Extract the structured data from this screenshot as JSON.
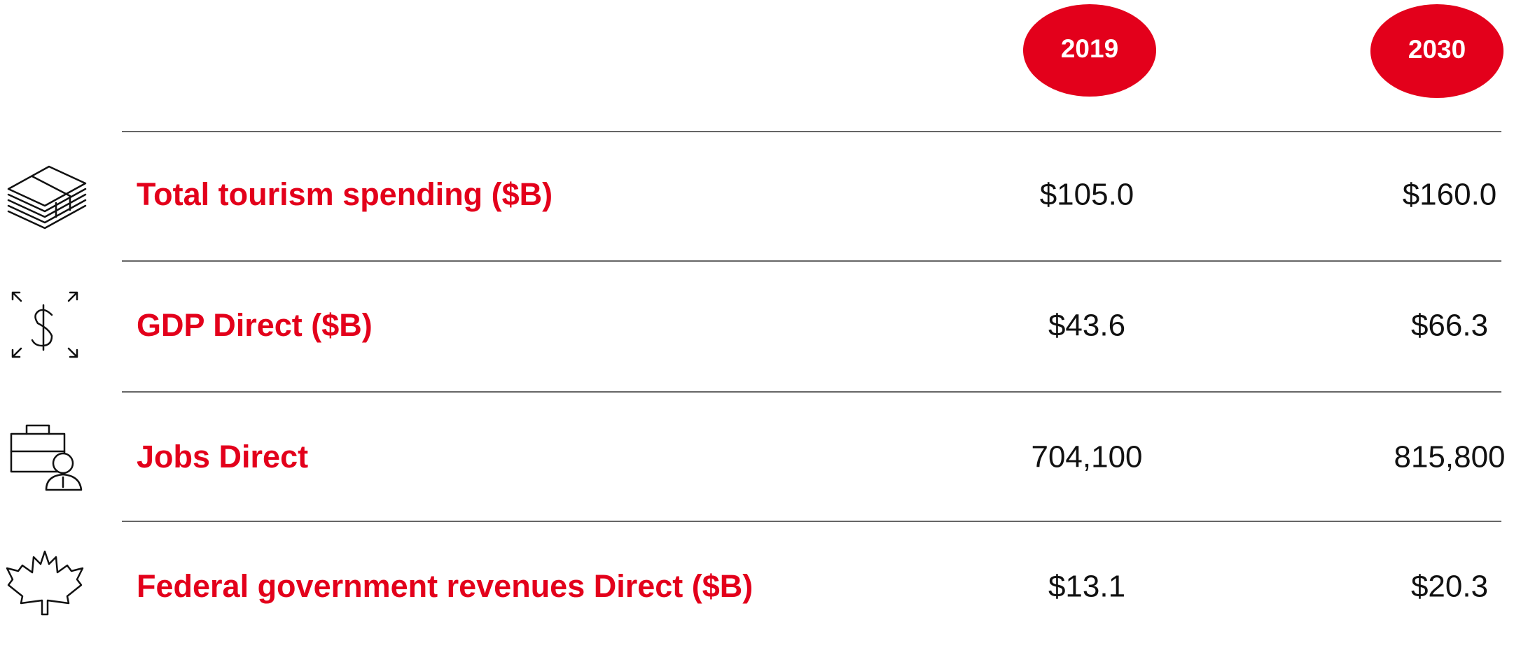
{
  "table": {
    "header": [
      "2019",
      "2030"
    ],
    "rows": [
      [
        "Total tourism spending ($B)",
        "$105.0",
        "$160.0"
      ],
      [
        "GDP Direct ($B)",
        "$43.6",
        "$66.3"
      ],
      [
        "Jobs Direct",
        "704,100",
        "815,800"
      ],
      [
        "Federal government revenues Direct ($B)",
        "$13.1",
        "$20.3"
      ]
    ]
  }
}
